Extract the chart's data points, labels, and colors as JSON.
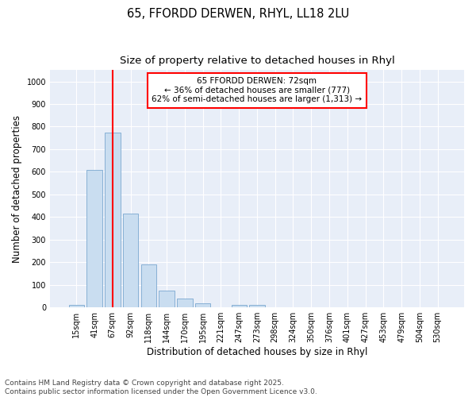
{
  "title_line1": "65, FFORDD DERWEN, RHYL, LL18 2LU",
  "title_line2": "Size of property relative to detached houses in Rhyl",
  "xlabel": "Distribution of detached houses by size in Rhyl",
  "ylabel": "Number of detached properties",
  "categories": [
    "15sqm",
    "41sqm",
    "67sqm",
    "92sqm",
    "118sqm",
    "144sqm",
    "170sqm",
    "195sqm",
    "221sqm",
    "247sqm",
    "273sqm",
    "298sqm",
    "324sqm",
    "350sqm",
    "376sqm",
    "401sqm",
    "427sqm",
    "453sqm",
    "479sqm",
    "504sqm",
    "530sqm"
  ],
  "values": [
    13,
    607,
    775,
    415,
    192,
    75,
    40,
    18,
    0,
    10,
    13,
    0,
    0,
    0,
    0,
    0,
    0,
    0,
    0,
    0,
    0
  ],
  "bar_color": "#c9ddf0",
  "bar_edge_color": "#7aA8d0",
  "vline_x": 2,
  "vline_color": "red",
  "annotation_text": "65 FFORDD DERWEN: 72sqm\n← 36% of detached houses are smaller (777)\n62% of semi-detached houses are larger (1,313) →",
  "annotation_box_color": "white",
  "annotation_box_edge_color": "red",
  "ylim": [
    0,
    1050
  ],
  "yticks": [
    0,
    100,
    200,
    300,
    400,
    500,
    600,
    700,
    800,
    900,
    1000
  ],
  "bg_color": "#e8eef8",
  "footer_text": "Contains HM Land Registry data © Crown copyright and database right 2025.\nContains public sector information licensed under the Open Government Licence v3.0.",
  "title_fontsize": 10.5,
  "subtitle_fontsize": 9.5,
  "tick_fontsize": 7,
  "xlabel_fontsize": 8.5,
  "ylabel_fontsize": 8.5,
  "footer_fontsize": 6.5,
  "annot_fontsize": 7.5
}
